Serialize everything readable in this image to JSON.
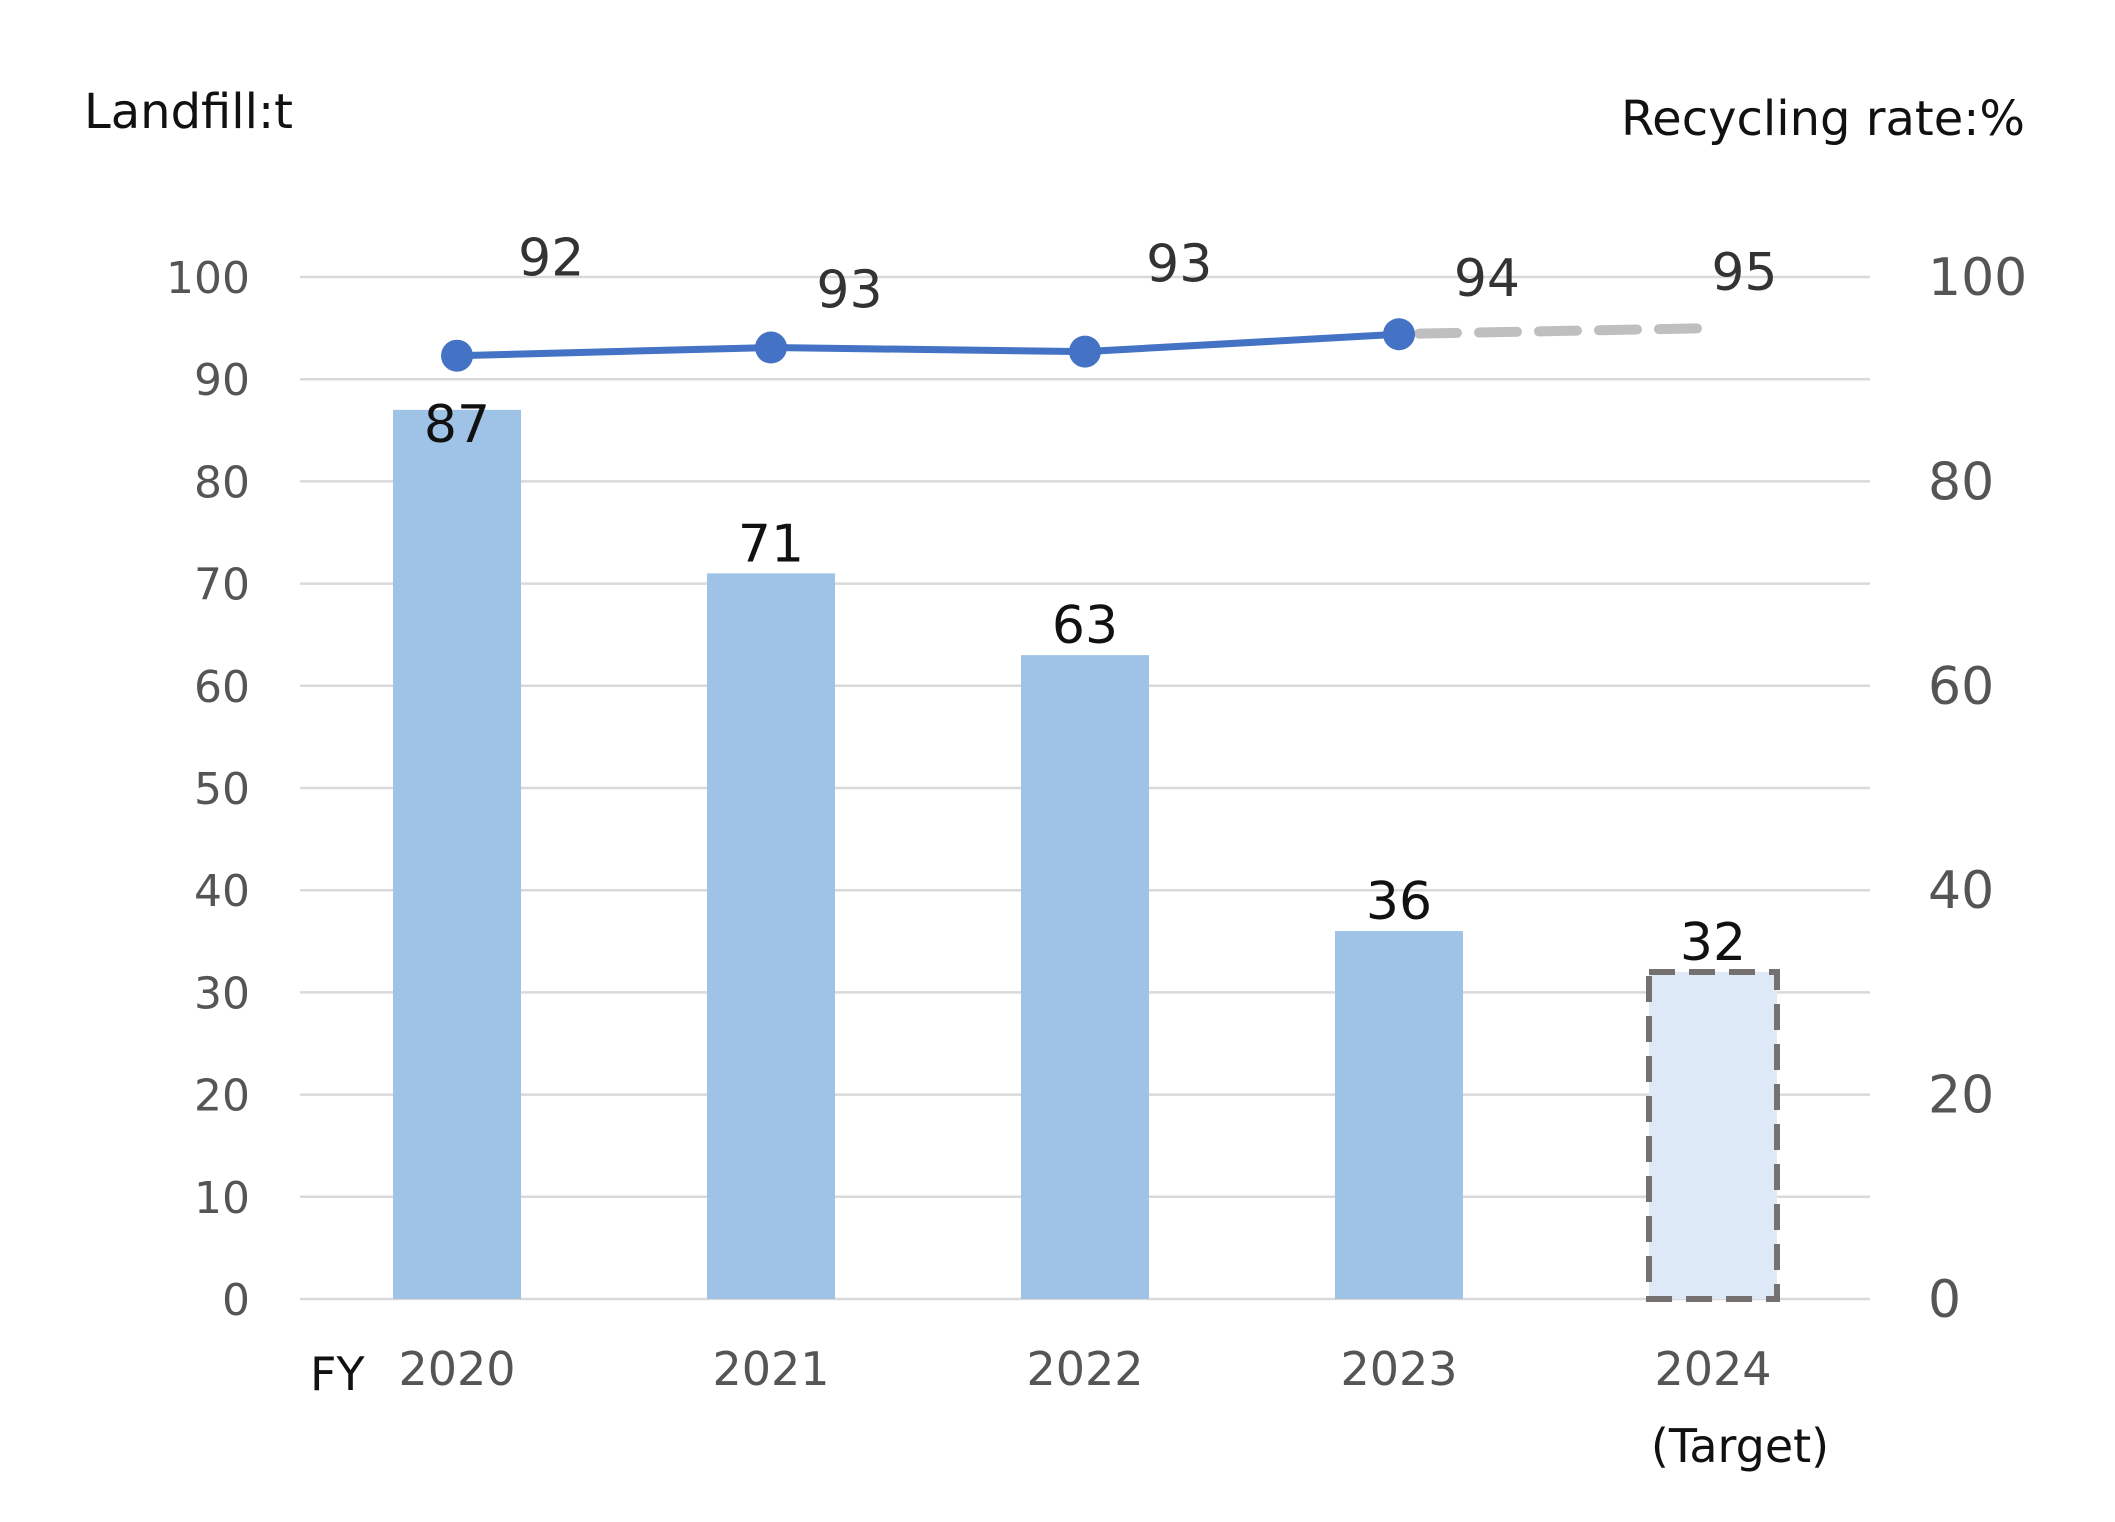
{
  "chart_data": {
    "type": "bar",
    "left_axis_title": "Landfill:t",
    "right_axis_title": "Recycling rate:%",
    "x_prefix": "FY",
    "categories": [
      "2020",
      "2021",
      "2022",
      "2023",
      "2024"
    ],
    "target_note": "(Target)",
    "series": [
      {
        "type": "bar",
        "axis": "left",
        "values": [
          87,
          71,
          63,
          36,
          32
        ],
        "value_labels": [
          "87",
          "71",
          "63",
          "36",
          "32"
        ],
        "target_index": 4
      },
      {
        "type": "line",
        "axis": "right",
        "values": [
          92.3,
          93.1,
          92.7,
          94.4,
          95.0
        ],
        "value_labels": [
          "92",
          "93",
          "93",
          "94",
          "95"
        ],
        "target_index": 4
      }
    ],
    "left_axis": {
      "min": 0,
      "max": 100,
      "ticks": [
        "0",
        "10",
        "20",
        "30",
        "40",
        "50",
        "60",
        "70",
        "80",
        "90",
        "100"
      ]
    },
    "right_axis": {
      "min": 0,
      "max": 100,
      "ticks": [
        "0",
        "20",
        "40",
        "60",
        "80",
        "100"
      ]
    },
    "grid": true,
    "colors": {
      "bar": "#9fc3e6",
      "bar_target": "#dde9f6",
      "bar_target_border": "#767171",
      "line": "#4472c4",
      "line_target": "#bfbfbf",
      "grid": "#d9d9d9"
    }
  }
}
